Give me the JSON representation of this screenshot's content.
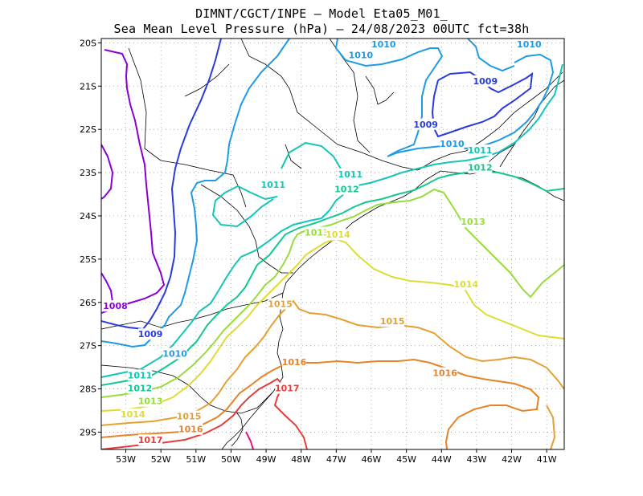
{
  "header": {
    "title_line1": "DIMNT/CGCT/INPE –  Model Eta05_M01_",
    "title_line2": "Sea Mean Level Pressure (hPa) – 24/08/2023 00UTC fct=38h"
  },
  "map": {
    "lon_range": [
      -53.7,
      -40.5
    ],
    "lat_range": [
      -29.4,
      -19.9
    ],
    "lat_ticks": [
      "20S",
      "21S",
      "22S",
      "23S",
      "24S",
      "25S",
      "26S",
      "27S",
      "28S",
      "29S"
    ],
    "lon_ticks": [
      "53W",
      "52W",
      "51W",
      "50W",
      "49W",
      "48W",
      "47W",
      "46W",
      "45W",
      "44W",
      "43W",
      "42W",
      "41W"
    ],
    "grid": "dotted",
    "coastline_color": "#000000",
    "borders_color": "#000000"
  },
  "contours": {
    "levels": [
      {
        "hpa": 1008,
        "label": "1008",
        "color": "#8a00d4"
      },
      {
        "hpa": 1009,
        "label": "1009",
        "color": "#2a3adc"
      },
      {
        "hpa": 1010,
        "label": "1010",
        "color": "#1e9be6"
      },
      {
        "hpa": 1011,
        "label": "1011",
        "color": "#12c6b8"
      },
      {
        "hpa": 1012,
        "label": "1012",
        "color": "#12c890"
      },
      {
        "hpa": 1013,
        "label": "1013",
        "color": "#96dc3c"
      },
      {
        "hpa": 1014,
        "label": "1014",
        "color": "#dcdc32"
      },
      {
        "hpa": 1015,
        "label": "1015",
        "color": "#e6a032"
      },
      {
        "hpa": 1016,
        "label": "1016",
        "color": "#e68228"
      },
      {
        "hpa": 1017,
        "label": "1017",
        "color": "#e63c3c"
      }
    ],
    "labels": [
      {
        "text": "1008",
        "color": "#8a00d4",
        "lon": -53.3,
        "lat": -26.1
      },
      {
        "text": "1009",
        "color": "#2a3adc",
        "lon": -52.3,
        "lat": -26.75
      },
      {
        "text": "1009",
        "color": "#2a3adc",
        "lon": -42.75,
        "lat": -20.9
      },
      {
        "text": "1009",
        "color": "#2a3adc",
        "lon": -44.45,
        "lat": -21.9
      },
      {
        "text": "1010",
        "color": "#1e9be6",
        "lon": -51.6,
        "lat": -27.2
      },
      {
        "text": "1010",
        "color": "#1e9be6",
        "lon": -46.3,
        "lat": -20.3
      },
      {
        "text": "1010",
        "color": "#1e9be6",
        "lon": -45.65,
        "lat": -20.05
      },
      {
        "text": "1010",
        "color": "#1e9be6",
        "lon": -41.5,
        "lat": -20.05
      },
      {
        "text": "1010",
        "color": "#1e9be6",
        "lon": -43.7,
        "lat": -22.35
      },
      {
        "text": "1011",
        "color": "#12c6b8",
        "lon": -52.6,
        "lat": -27.7
      },
      {
        "text": "1011",
        "color": "#12c6b8",
        "lon": -48.8,
        "lat": -23.3
      },
      {
        "text": "1011",
        "color": "#12c6b8",
        "lon": -46.6,
        "lat": -23.05
      },
      {
        "text": "1011",
        "color": "#12c6b8",
        "lon": -42.9,
        "lat": -22.5
      },
      {
        "text": "1012",
        "color": "#12c890",
        "lon": -52.6,
        "lat": -28.0
      },
      {
        "text": "1012",
        "color": "#12c890",
        "lon": -46.7,
        "lat": -23.4
      },
      {
        "text": "1012",
        "color": "#12c890",
        "lon": -42.9,
        "lat": -22.9
      },
      {
        "text": "1013",
        "color": "#96dc3c",
        "lon": -52.3,
        "lat": -28.3
      },
      {
        "text": "1013",
        "color": "#96dc3c",
        "lon": -47.55,
        "lat": -24.4
      },
      {
        "text": "1013",
        "color": "#96dc3c",
        "lon": -43.1,
        "lat": -24.15
      },
      {
        "text": "1014",
        "color": "#dcdc32",
        "lon": -52.8,
        "lat": -28.6
      },
      {
        "text": "1014",
        "color": "#dcdc32",
        "lon": -46.95,
        "lat": -24.45
      },
      {
        "text": "1014",
        "color": "#dcdc32",
        "lon": -43.3,
        "lat": -25.6
      },
      {
        "text": "1015",
        "color": "#e6a032",
        "lon": -51.2,
        "lat": -28.65
      },
      {
        "text": "1015",
        "color": "#e6a032",
        "lon": -48.6,
        "lat": -26.05
      },
      {
        "text": "1015",
        "color": "#e6a032",
        "lon": -45.4,
        "lat": -26.45
      },
      {
        "text": "1016",
        "color": "#e68228",
        "lon": -51.15,
        "lat": -28.95
      },
      {
        "text": "1016",
        "color": "#e68228",
        "lon": -48.2,
        "lat": -27.4
      },
      {
        "text": "1016",
        "color": "#e68228",
        "lon": -43.9,
        "lat": -27.65
      },
      {
        "text": "1017",
        "color": "#e63c3c",
        "lon": -52.3,
        "lat": -29.2
      },
      {
        "text": "1017",
        "color": "#e63c3c",
        "lon": -48.4,
        "lat": -28.0
      }
    ]
  }
}
